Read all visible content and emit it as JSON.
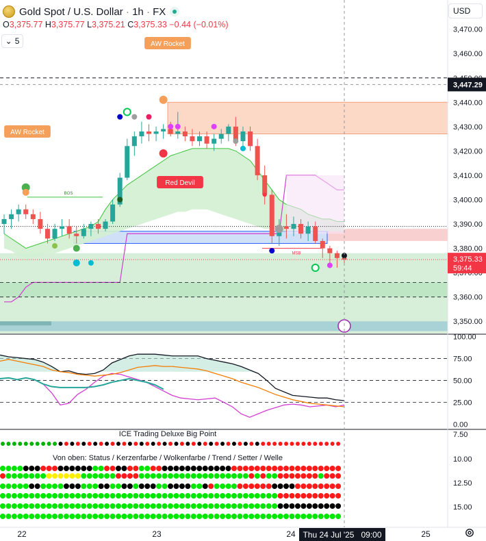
{
  "header": {
    "symbol": "Gold Spot / U.S. Dollar",
    "interval": "1h",
    "exchange": "FX",
    "open_label": "O",
    "open": "3,375.77",
    "high_label": "H",
    "high": "3,375.77",
    "low_label": "L",
    "low": "3,375.21",
    "close_label": "C",
    "close": "3,375.33",
    "change": "−0.44 (−0.01%)",
    "collapse_count": "5",
    "currency": "USD"
  },
  "colors": {
    "up": "#22ab94",
    "down": "#f23645",
    "candle_up": "#26a69a",
    "candle_down": "#ef5350",
    "accent": "#2962ff"
  },
  "chart_data": [
    {
      "type": "candlestick",
      "title": "Gold Spot / U.S. Dollar · 1h · FX",
      "ylim": [
        3345,
        3482
      ],
      "yticks": [
        "3,350.00",
        "3,360.00",
        "3,370.00",
        "3,380.00",
        "3,390.00",
        "3,400.00",
        "3,410.00",
        "3,420.00",
        "3,430.00",
        "3,440.00",
        "3,450.00",
        "3,460.00",
        "3,470.00"
      ],
      "xticks": [
        "22",
        "23",
        "24",
        "25"
      ],
      "last_price": "3,375.33",
      "countdown": "59:44",
      "crosshair_price": "3,447.29",
      "labels": {
        "aw_rocket": "AW Rocket",
        "red_devil": "Red Devil",
        "bos": "BOS",
        "msb": "MSB"
      },
      "candles": [
        [
          3390,
          3394,
          3386,
          3392
        ],
        [
          3392,
          3396,
          3388,
          3394
        ],
        [
          3394,
          3398,
          3391,
          3396
        ],
        [
          3396,
          3398,
          3392,
          3394
        ],
        [
          3394,
          3396,
          3390,
          3392
        ],
        [
          3392,
          3395,
          3386,
          3388
        ],
        [
          3388,
          3390,
          3382,
          3384
        ],
        [
          3384,
          3390,
          3383,
          3388
        ],
        [
          3388,
          3392,
          3385,
          3389
        ],
        [
          3389,
          3392,
          3384,
          3386
        ],
        [
          3386,
          3389,
          3382,
          3385
        ],
        [
          3385,
          3390,
          3384,
          3388
        ],
        [
          3388,
          3391,
          3385,
          3390
        ],
        [
          3390,
          3392,
          3386,
          3388
        ],
        [
          3388,
          3392,
          3387,
          3391
        ],
        [
          3391,
          3400,
          3390,
          3398
        ],
        [
          3398,
          3411,
          3397,
          3409
        ],
        [
          3409,
          3425,
          3408,
          3422
        ],
        [
          3422,
          3428,
          3418,
          3426
        ],
        [
          3426,
          3432,
          3423,
          3428
        ],
        [
          3428,
          3431,
          3424,
          3427
        ],
        [
          3427,
          3430,
          3424,
          3428
        ],
        [
          3428,
          3431,
          3425,
          3429
        ],
        [
          3429,
          3432,
          3426,
          3427
        ],
        [
          3427,
          3436,
          3425,
          3428
        ],
        [
          3428,
          3430,
          3424,
          3426
        ],
        [
          3426,
          3429,
          3422,
          3424
        ],
        [
          3424,
          3428,
          3422,
          3426
        ],
        [
          3426,
          3428,
          3421,
          3423
        ],
        [
          3423,
          3427,
          3420,
          3425
        ],
        [
          3425,
          3429,
          3423,
          3427
        ],
        [
          3427,
          3431,
          3424,
          3430
        ],
        [
          3430,
          3434,
          3422,
          3424
        ],
        [
          3424,
          3430,
          3421,
          3428
        ],
        [
          3428,
          3430,
          3420,
          3422
        ],
        [
          3422,
          3425,
          3408,
          3410
        ],
        [
          3410,
          3414,
          3398,
          3402
        ],
        [
          3402,
          3404,
          3382,
          3385
        ],
        [
          3385,
          3392,
          3381,
          3389
        ],
        [
          3389,
          3394,
          3384,
          3388
        ],
        [
          3388,
          3393,
          3385,
          3390
        ],
        [
          3390,
          3392,
          3384,
          3386
        ],
        [
          3386,
          3391,
          3383,
          3389
        ],
        [
          3389,
          3391,
          3382,
          3383
        ],
        [
          3383,
          3384,
          3376,
          3380
        ],
        [
          3380,
          3381,
          3374,
          3378
        ],
        [
          3378,
          3379,
          3372,
          3376
        ],
        [
          3376,
          3378,
          3373,
          3375.33
        ]
      ]
    },
    {
      "type": "line",
      "title": "",
      "ylim": [
        -5,
        102
      ],
      "yticks": [
        "0.00",
        "25.00",
        "50.00",
        "75.00",
        "100.00"
      ],
      "series": [
        {
          "values": [
            79,
            77,
            76,
            75,
            74,
            71,
            66,
            60,
            61,
            58,
            57,
            58,
            62,
            70,
            74,
            78,
            80,
            80,
            80,
            79,
            78,
            78,
            78,
            78,
            75,
            73,
            71,
            69,
            66,
            62,
            58,
            50,
            41,
            37,
            33,
            32,
            31,
            30,
            30,
            28,
            27
          ]
        },
        {
          "values": [
            52,
            53,
            51,
            53,
            51,
            46,
            36,
            22,
            24,
            34,
            40,
            48,
            55,
            58,
            57,
            54,
            51,
            48,
            43,
            38,
            33,
            30,
            29,
            28,
            29,
            30,
            25,
            20,
            12,
            8,
            12,
            16,
            19,
            22,
            23,
            22,
            20,
            21,
            22,
            20,
            22
          ]
        },
        {
          "values": [
            72,
            74,
            72,
            70,
            68,
            66,
            62,
            60,
            59,
            57,
            56,
            55,
            56,
            57,
            59,
            62,
            65,
            66,
            67,
            66,
            66,
            65,
            64,
            63,
            61,
            58,
            55,
            52,
            48,
            45,
            42,
            38,
            34,
            31,
            28,
            26,
            24,
            23,
            22,
            21,
            20
          ]
        }
      ]
    },
    {
      "type": "table",
      "title": "ICE Trading Deluxe Big Point",
      "subtitle": "Von oben: Status / Kerzenfarbe / Wolkenfarbe / Trend / Setter / Welle",
      "yticks": [
        "7.50",
        "10.00",
        "12.50",
        "15.00"
      ],
      "rows": [
        "GGGGBBBRRRBBBBBBGGRRBBRRGGRRBBBBBBBBBBBBRRRRRRRRRRRRRRRRRRR",
        "RGGGGGGGYYYYYYGGGGGGRRRRGGGGGGGGGGGGGGGGGGGRGRGGRRRRRRRGRRR",
        "GGGGGBBGGGGBBBGGGBBGGBBGBBBGGBBBBGGBRGGGGRRRRRRBBBBRRRRRRRR",
        "GGGGGGGGGGGGGGGGGGGGGGGGGGGGGGGGGGGGGGGGGGGGGGGGRRRRRRRRRRR",
        "GGGGGGGGGGGGGGGGGGGGGGGGGGGGGGGGGGGGGGGGGGGGGGGGBBBBBBBBBBB",
        "GGGGGGGGGGGGGGGGGGGGGGGGGGGGGGGGGGGGGGGGGGGGGGGGGGGGGGGGGGG"
      ]
    }
  ],
  "crosshair_date": "Thu 24 Jul '25",
  "crosshair_time": "09:00"
}
